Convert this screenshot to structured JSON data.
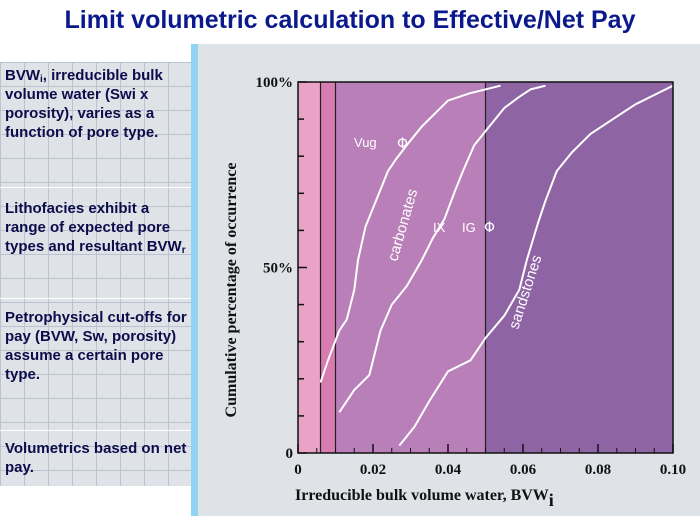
{
  "header": {
    "title": "Limit volumetric calculation to Effective/Net Pay"
  },
  "sidebar": {
    "p1": {
      "pre": "BVW",
      "sub": "i",
      "post": ", irreducible bulk volume water (Swi x porosity), varies as a function of pore type."
    },
    "p2": {
      "pre": "Lithofacies exhibit a range of expected pore types and resultant BVW",
      "sub": "r"
    },
    "p3": {
      "text": "Petrophysical cut-offs for pay (BVW, Sw, porosity) assume a certain pore type."
    },
    "p4": {
      "text": "Volumetrics based on net pay."
    }
  },
  "plot": {
    "ylabel": "Cumulative percentage of occurrence",
    "xlabel": "Irreducible bulk volume water,   BVW",
    "xlabel_sub": "i",
    "annotations": {
      "vug": "Vug",
      "phi": "Φ",
      "carbonates": "carbonates",
      "ix": "IX",
      "ig": "IG",
      "sandstones": "sandstones"
    }
  },
  "chart_data": {
    "type": "line",
    "xlabel": "Irreducible bulk volume water,   BVW i",
    "ylabel": "Cumulative percentage of occurrence",
    "xlim": [
      0,
      0.1
    ],
    "ylim": [
      0,
      100
    ],
    "x_ticks": [
      "0",
      "0.02",
      "0.04",
      "0.06",
      "0.08",
      "0.10"
    ],
    "y_ticks": [
      "0",
      "50%",
      "100%"
    ],
    "bands": [
      {
        "x_from": 0,
        "x_to": 0.006,
        "color": "#e8a3c6"
      },
      {
        "x_from": 0.006,
        "x_to": 0.01,
        "color": "#d77bb0"
      },
      {
        "x_from": 0.01,
        "x_to": 0.05,
        "color": "#b97fb8"
      },
      {
        "x_from": 0.05,
        "x_to": 0.1,
        "color": "#8e64a5"
      }
    ],
    "cutoff_lines_x": [
      0.006,
      0.01,
      0.05
    ],
    "series": [
      {
        "name": "Vug Φ",
        "points": [
          [
            0.006,
            19
          ],
          [
            0.008,
            25
          ],
          [
            0.011,
            33
          ],
          [
            0.013,
            36
          ],
          [
            0.015,
            44
          ],
          [
            0.016,
            52
          ],
          [
            0.018,
            61
          ],
          [
            0.02,
            66
          ],
          [
            0.022,
            71
          ],
          [
            0.024,
            76
          ],
          [
            0.026,
            79
          ],
          [
            0.029,
            83
          ],
          [
            0.033,
            88
          ],
          [
            0.036,
            91
          ],
          [
            0.04,
            95
          ],
          [
            0.046,
            97
          ],
          [
            0.054,
            99
          ]
        ]
      },
      {
        "name": "IX",
        "points": [
          [
            0.011,
            11
          ],
          [
            0.015,
            17
          ],
          [
            0.019,
            21
          ],
          [
            0.022,
            33
          ],
          [
            0.025,
            40
          ],
          [
            0.029,
            45
          ],
          [
            0.033,
            52
          ],
          [
            0.036,
            58
          ],
          [
            0.039,
            63
          ],
          [
            0.042,
            71
          ],
          [
            0.044,
            76
          ],
          [
            0.047,
            83
          ],
          [
            0.051,
            88
          ],
          [
            0.055,
            93
          ],
          [
            0.059,
            96
          ],
          [
            0.062,
            98
          ],
          [
            0.066,
            99
          ]
        ]
      },
      {
        "name": "IG Φ",
        "points": [
          [
            0.027,
            2
          ],
          [
            0.031,
            7
          ],
          [
            0.035,
            14
          ],
          [
            0.04,
            22
          ],
          [
            0.046,
            25
          ],
          [
            0.05,
            31
          ],
          [
            0.055,
            37
          ],
          [
            0.059,
            44
          ],
          [
            0.061,
            52
          ],
          [
            0.064,
            62
          ],
          [
            0.066,
            68
          ],
          [
            0.069,
            76
          ],
          [
            0.073,
            81
          ],
          [
            0.078,
            86
          ],
          [
            0.084,
            90
          ],
          [
            0.09,
            94
          ],
          [
            0.096,
            97
          ],
          [
            0.1,
            99
          ]
        ]
      }
    ]
  }
}
